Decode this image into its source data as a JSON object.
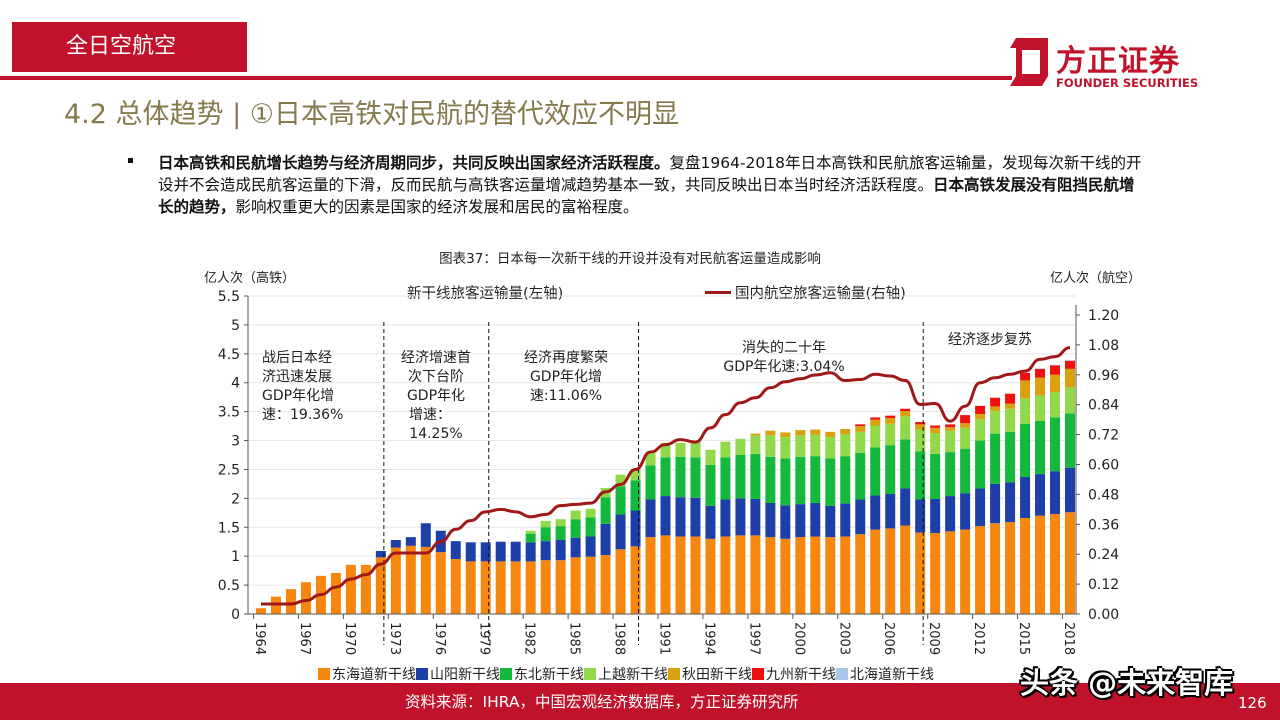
{
  "header": {
    "section": "全日空航空",
    "title": "4.2 总体趋势 | ①日本高铁对民航的替代效应不明显",
    "logo_cn": "方正证券",
    "logo_en": "FOUNDER SECURITIES"
  },
  "bullet": [
    {
      "text": "日本高铁和民航增长趋势与经济周期同步，共同反映出国家经济活跃程度。",
      "bold": true
    },
    {
      "text": "复盘1964-2018年日本高铁和民航旅客运输量，发现每次新干线的开设并不会造成民航客运量的下滑，反而民航与高铁客运量增减趋势基本一致，共同反映出日本当时经济活跃程度。",
      "bold": false
    },
    {
      "text": "日本高铁发展没有阻挡民航增长的趋势，",
      "bold": true
    },
    {
      "text": "影响权重更大的因素是国家的经济发展和居民的富裕程度。",
      "bold": false
    }
  ],
  "footer": {
    "source": "资料来源：IHRA，中国宏观经济数据库，方正证券研究所",
    "page": "126",
    "watermark": "头条 @未来智库"
  },
  "colors": {
    "brand": "#C0122A",
    "title": "#857A4C"
  },
  "chart_data": {
    "type": "bar",
    "stacked": true,
    "title": "图表37：日本每一次新干线的开设并没有对民航客运量造成影响",
    "ylabel_left": "亿人次（高铁）",
    "ylabel_right": "亿人次（航空）",
    "bar_legend_label": "新干线旅客运输量(左轴)",
    "ylim_left": [
      0,
      5.5
    ],
    "yticks_left": [
      "0",
      "0.5",
      "1",
      "1.5",
      "2",
      "2.5",
      "3",
      "3.5",
      "4",
      "4.5",
      "5",
      "5.5"
    ],
    "ylim_right": [
      0,
      1.2
    ],
    "yticks_right": [
      "0.00",
      "0.12",
      "0.24",
      "0.36",
      "0.48",
      "0.60",
      "0.72",
      "0.84",
      "0.96",
      "1.08",
      "1.20"
    ],
    "x_start": 1964,
    "x_end": 2018,
    "xtick_labels": [
      "1964",
      "1967",
      "1970",
      "1973",
      "1976",
      "1979",
      "1982",
      "1985",
      "1988",
      "1991",
      "1994",
      "1997",
      "2000",
      "2003",
      "2006",
      "2009",
      "2012",
      "2015",
      "2018"
    ],
    "grid": true,
    "series": [
      {
        "name": "东海道新干线",
        "color": "#F5870F",
        "values": [
          0.1,
          0.3,
          0.43,
          0.55,
          0.66,
          0.71,
          0.85,
          0.85,
          0.98,
          1.15,
          1.18,
          1.16,
          1.07,
          0.95,
          0.91,
          0.91,
          0.91,
          0.91,
          0.91,
          0.93,
          0.93,
          0.98,
          0.99,
          1.02,
          1.12,
          1.17,
          1.33,
          1.36,
          1.34,
          1.34,
          1.3,
          1.34,
          1.36,
          1.36,
          1.33,
          1.3,
          1.33,
          1.34,
          1.33,
          1.34,
          1.38,
          1.46,
          1.48,
          1.53,
          1.41,
          1.4,
          1.43,
          1.46,
          1.52,
          1.57,
          1.59,
          1.66,
          1.7,
          1.73,
          1.76
        ]
      },
      {
        "name": "山阳新干线",
        "color": "#1F3FA8",
        "values": [
          0,
          0,
          0,
          0,
          0,
          0,
          0,
          0,
          0.11,
          0.13,
          0.15,
          0.41,
          0.37,
          0.31,
          0.33,
          0.33,
          0.34,
          0.34,
          0.33,
          0.33,
          0.35,
          0.34,
          0.35,
          0.54,
          0.6,
          0.62,
          0.65,
          0.68,
          0.68,
          0.67,
          0.57,
          0.64,
          0.64,
          0.63,
          0.59,
          0.58,
          0.57,
          0.58,
          0.54,
          0.57,
          0.6,
          0.59,
          0.6,
          0.64,
          0.57,
          0.59,
          0.61,
          0.63,
          0.65,
          0.68,
          0.69,
          0.71,
          0.72,
          0.74,
          0.77
        ]
      },
      {
        "name": "东北新干线",
        "color": "#14B83C",
        "values": [
          0,
          0,
          0,
          0,
          0,
          0,
          0,
          0,
          0,
          0,
          0,
          0,
          0,
          0,
          0,
          0,
          0,
          0,
          0.15,
          0.24,
          0.24,
          0.32,
          0.33,
          0.46,
          0.49,
          0.52,
          0.59,
          0.67,
          0.7,
          0.7,
          0.71,
          0.73,
          0.75,
          0.78,
          0.8,
          0.81,
          0.82,
          0.81,
          0.82,
          0.82,
          0.81,
          0.83,
          0.84,
          0.85,
          0.83,
          0.78,
          0.76,
          0.77,
          0.83,
          0.87,
          0.87,
          0.92,
          0.92,
          0.93,
          0.94
        ]
      },
      {
        "name": "上越新干线",
        "color": "#92D94A",
        "values": [
          0,
          0,
          0,
          0,
          0,
          0,
          0,
          0,
          0,
          0,
          0,
          0,
          0,
          0,
          0,
          0,
          0,
          0,
          0.05,
          0.11,
          0.12,
          0.15,
          0.15,
          0.16,
          0.2,
          0.2,
          0.23,
          0.25,
          0.24,
          0.27,
          0.26,
          0.27,
          0.28,
          0.32,
          0.37,
          0.37,
          0.37,
          0.37,
          0.37,
          0.38,
          0.36,
          0.38,
          0.37,
          0.4,
          0.38,
          0.36,
          0.37,
          0.36,
          0.37,
          0.39,
          0.4,
          0.44,
          0.44,
          0.44,
          0.45
        ]
      },
      {
        "name": "秋田新干线",
        "color": "#D9A010",
        "values": [
          0,
          0,
          0,
          0,
          0,
          0,
          0,
          0,
          0,
          0,
          0,
          0,
          0,
          0,
          0,
          0,
          0,
          0,
          0,
          0,
          0,
          0,
          0,
          0,
          0,
          0,
          0,
          0,
          0,
          0,
          0,
          0,
          0,
          0.03,
          0.08,
          0.08,
          0.09,
          0.09,
          0.09,
          0.09,
          0.1,
          0.1,
          0.1,
          0.09,
          0.09,
          0.09,
          0.06,
          0.08,
          0.09,
          0.08,
          0.09,
          0.31,
          0.31,
          0.3,
          0.32
        ]
      },
      {
        "name": "九州新干线",
        "color": "#F01010",
        "values": [
          0,
          0,
          0,
          0,
          0,
          0,
          0,
          0,
          0,
          0,
          0,
          0,
          0,
          0,
          0,
          0,
          0,
          0,
          0,
          0,
          0,
          0,
          0,
          0,
          0,
          0,
          0,
          0,
          0,
          0,
          0,
          0,
          0,
          0,
          0,
          0,
          0,
          0,
          0,
          0,
          0.03,
          0.04,
          0.04,
          0.04,
          0.04,
          0.04,
          0.05,
          0.14,
          0.14,
          0.15,
          0.17,
          0.13,
          0.15,
          0.16,
          0.14
        ]
      },
      {
        "name": "北海道新干线",
        "color": "#A8C8E8",
        "values": [
          0,
          0,
          0,
          0,
          0,
          0,
          0,
          0,
          0,
          0,
          0,
          0,
          0,
          0,
          0,
          0,
          0,
          0,
          0,
          0,
          0,
          0,
          0,
          0,
          0,
          0,
          0,
          0,
          0,
          0,
          0,
          0,
          0,
          0,
          0,
          0,
          0,
          0,
          0,
          0,
          0,
          0,
          0,
          0,
          0,
          0,
          0,
          0,
          0,
          0,
          0,
          0,
          0.01,
          0.01,
          0.01
        ]
      }
    ],
    "line": {
      "name": "国内航空旅客运输量(右轴)",
      "axis": "right",
      "color": "#A01818",
      "values": [
        0.04,
        0.04,
        0.04,
        0.054,
        0.078,
        0.108,
        0.14,
        0.158,
        0.2,
        0.245,
        0.245,
        0.245,
        0.29,
        0.34,
        0.375,
        0.41,
        0.42,
        0.41,
        0.39,
        0.4,
        0.435,
        0.44,
        0.445,
        0.49,
        0.52,
        0.58,
        0.65,
        0.68,
        0.7,
        0.69,
        0.747,
        0.8,
        0.848,
        0.868,
        0.908,
        0.932,
        0.944,
        0.959,
        0.968,
        0.937,
        0.941,
        0.962,
        0.955,
        0.937,
        0.841,
        0.845,
        0.774,
        0.834,
        0.928,
        0.948,
        0.962,
        0.975,
        1.022,
        1.033,
        1.069
      ]
    },
    "period_dividers": [
      1972,
      1979,
      1989,
      2008
    ],
    "annotations": [
      {
        "lines": [
          "战后日本经",
          "济迅速发展",
          "GDP年化增",
          "速：19.36%"
        ]
      },
      {
        "lines": [
          "经济增速首",
          "次下台阶",
          "GDP年化",
          "增速：",
          "14.25%"
        ]
      },
      {
        "lines": [
          "经济再度繁荣",
          "GDP年化增",
          "速:11.06%"
        ]
      },
      {
        "lines": [
          "消失的二十年",
          "GDP年化速:3.04%"
        ]
      },
      {
        "lines": [
          "经济逐步复苏"
        ]
      }
    ]
  }
}
